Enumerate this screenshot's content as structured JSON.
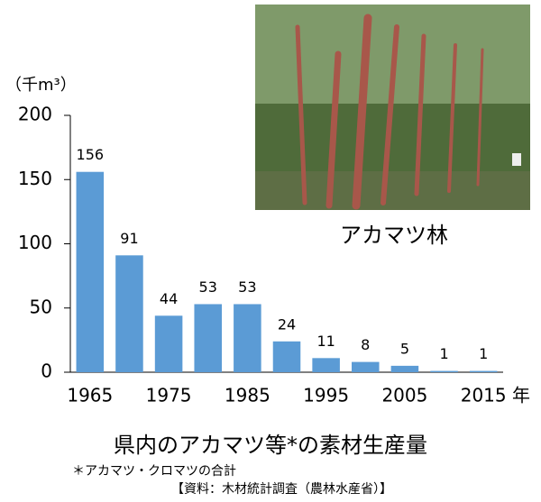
{
  "chart_data": {
    "type": "bar",
    "title": "県内のアカマツ等*の素材生産量",
    "y_axis_label": "（千m³）",
    "x_axis_label": "年",
    "categories": [
      "1965",
      null,
      "1975",
      null,
      "1985",
      null,
      "1995",
      null,
      "2005",
      null,
      "2015"
    ],
    "values": [
      156,
      91,
      44,
      53,
      53,
      24,
      11,
      8,
      5,
      1,
      1
    ],
    "color": "#5b9bd5",
    "ylim": [
      0,
      200
    ],
    "yticks": [
      0,
      50,
      100,
      150,
      200
    ],
    "grid": false,
    "photo_caption": "アカマツ林",
    "footnote": "＊アカマツ・クロマツの合計",
    "source": "【資料：木材統計調査（農林水産省）】"
  }
}
